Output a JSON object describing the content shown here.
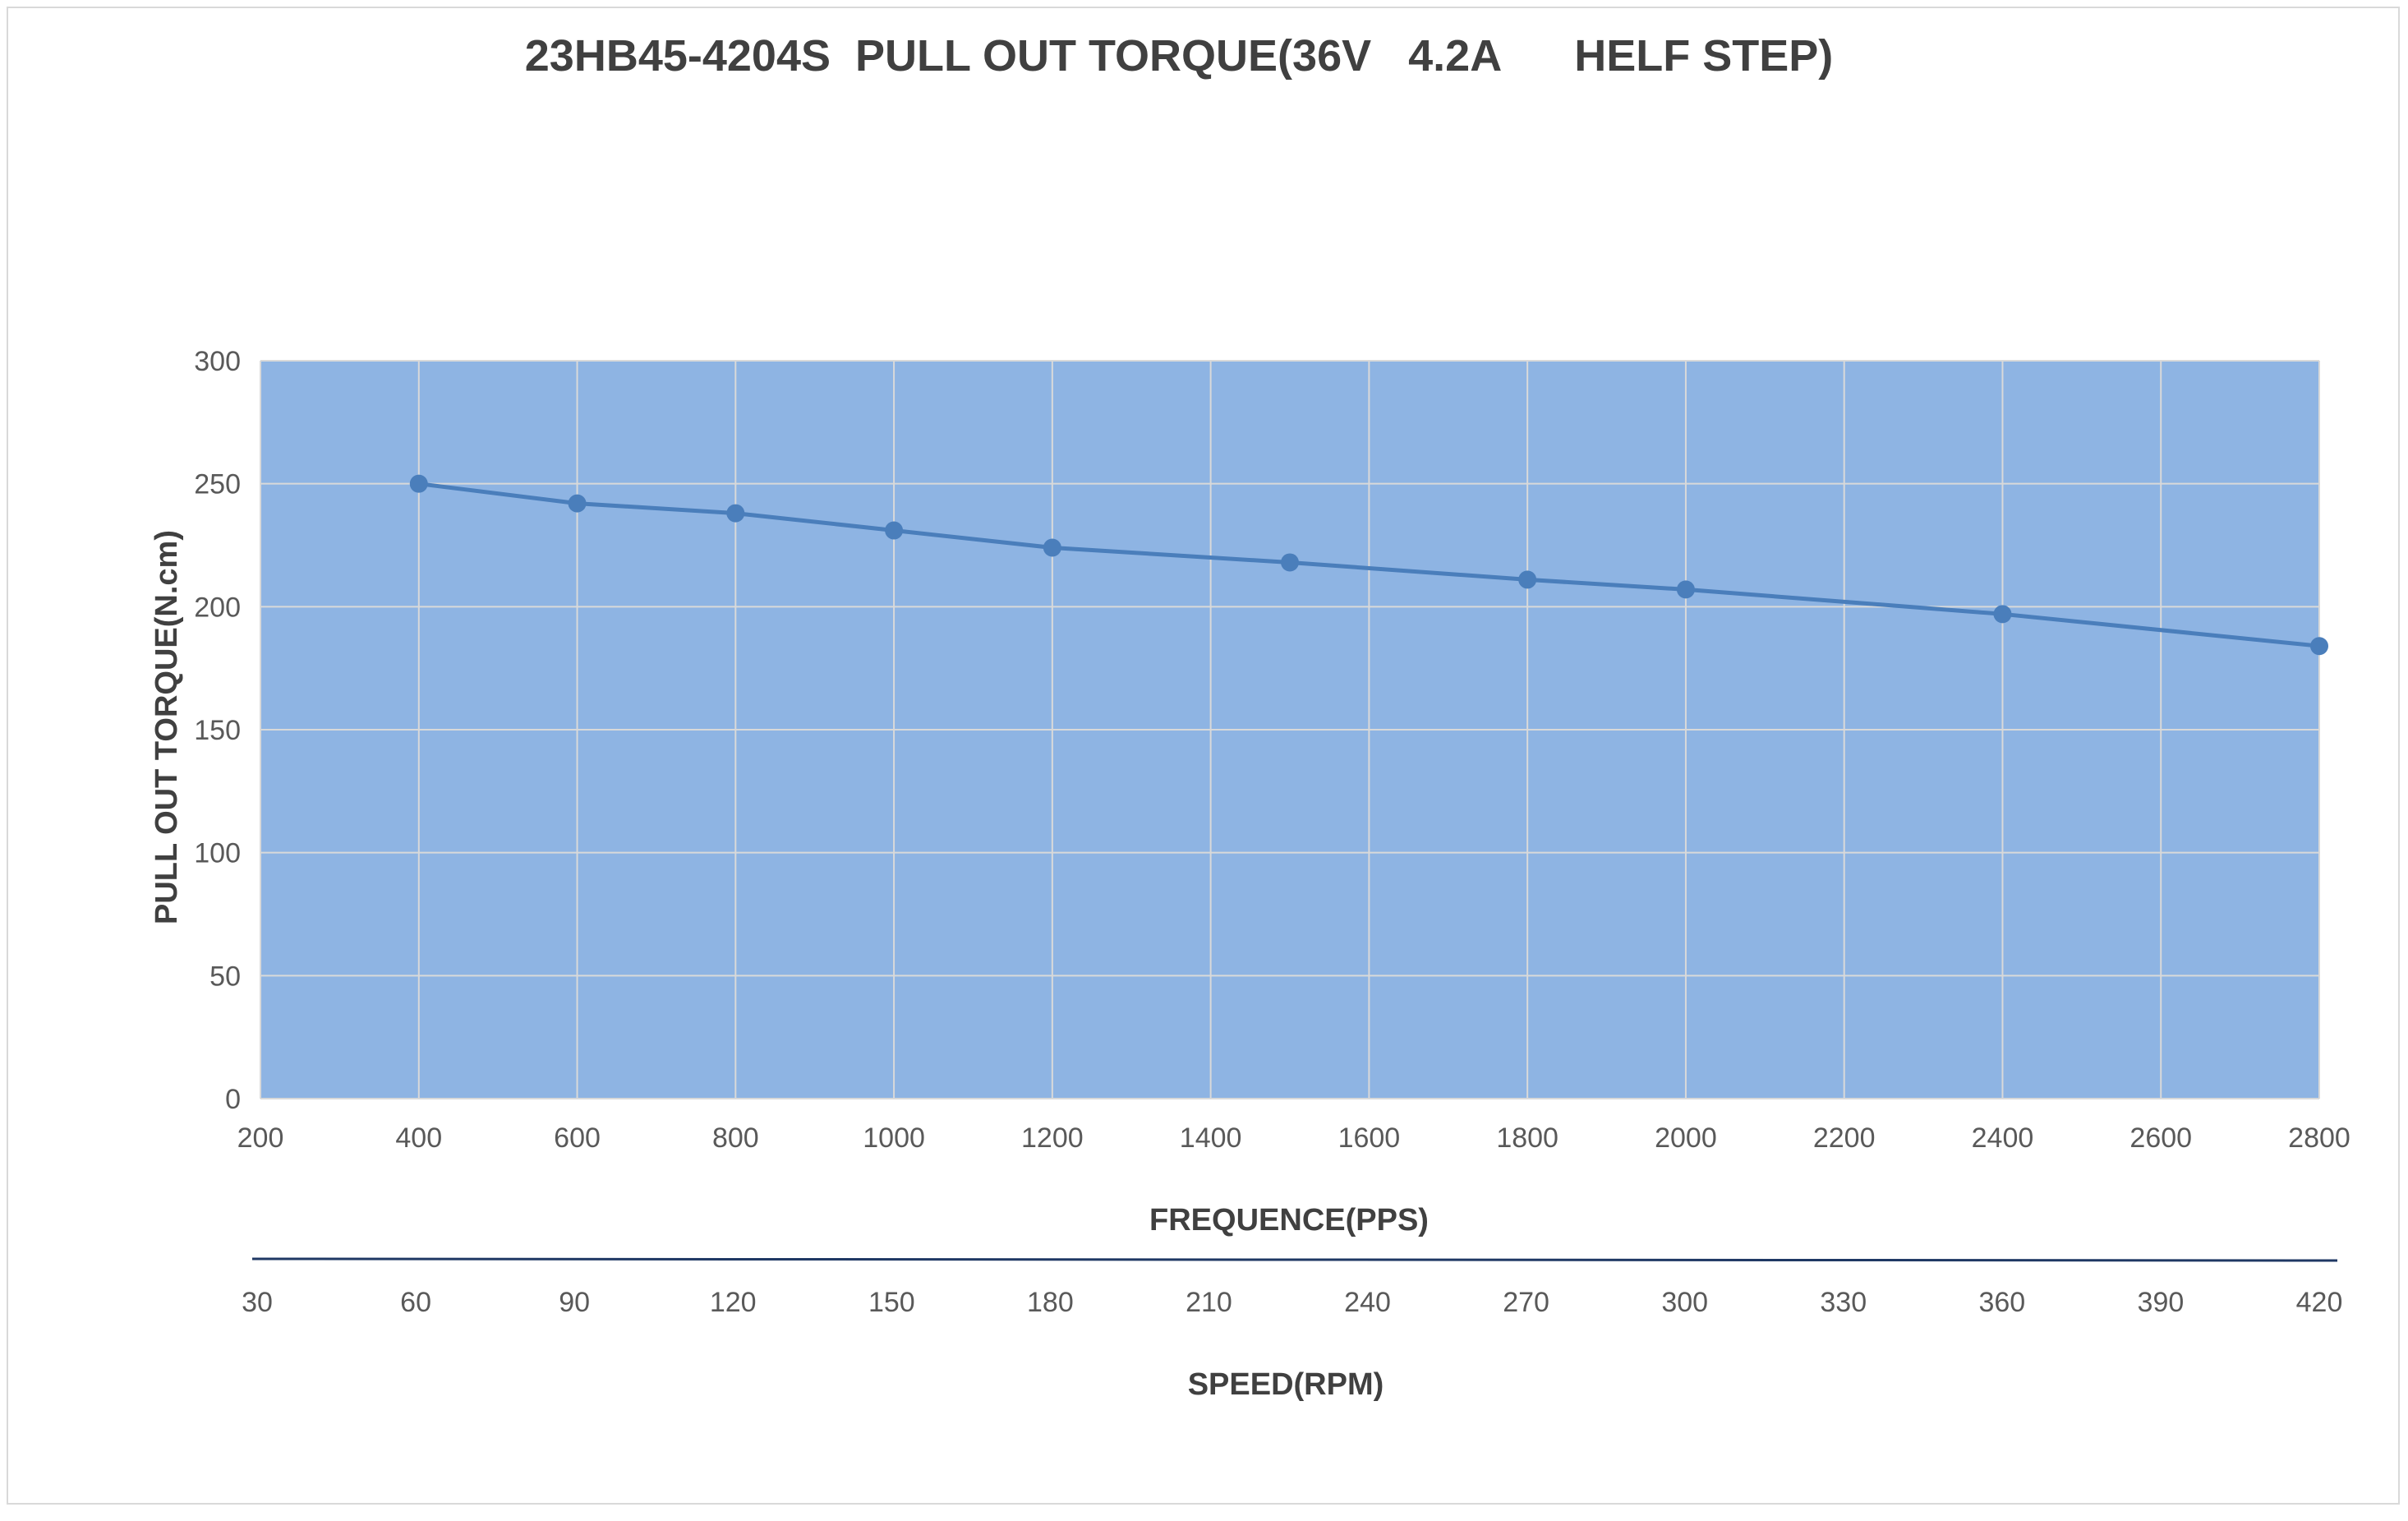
{
  "chart_data": {
    "type": "line",
    "title": "23HB45-4204S  PULL OUT TORQUE(36V   4.2A      HELF STEP)",
    "xlabel": "FREQUENCE(PPS)",
    "ylabel": "PULL OUT TORQUE(N.cm)",
    "secondary_xlabel": "SPEED(RPM)",
    "xlim": [
      200,
      2800
    ],
    "ylim": [
      0,
      300
    ],
    "x_ticks": [
      "200",
      "400",
      "600",
      "800",
      "1000",
      "1200",
      "1400",
      "1600",
      "1800",
      "2000",
      "2200",
      "2400",
      "2600",
      "2800"
    ],
    "y_ticks": [
      "0",
      "50",
      "100",
      "150",
      "200",
      "250",
      "300"
    ],
    "secondary_x_ticks": [
      "30",
      "60",
      "90",
      "120",
      "150",
      "180",
      "210",
      "240",
      "270",
      "300",
      "330",
      "360",
      "390",
      "420"
    ],
    "grid": true,
    "plot_background": "#8eb4e3",
    "line_color": "#4a7ebb",
    "series": [
      {
        "x": [
          400,
          600,
          800,
          1000,
          1200,
          1500,
          1800,
          2000,
          2400,
          2800
        ],
        "y": [
          250,
          242,
          238,
          231,
          224,
          218,
          211,
          207,
          197,
          184
        ]
      }
    ]
  }
}
